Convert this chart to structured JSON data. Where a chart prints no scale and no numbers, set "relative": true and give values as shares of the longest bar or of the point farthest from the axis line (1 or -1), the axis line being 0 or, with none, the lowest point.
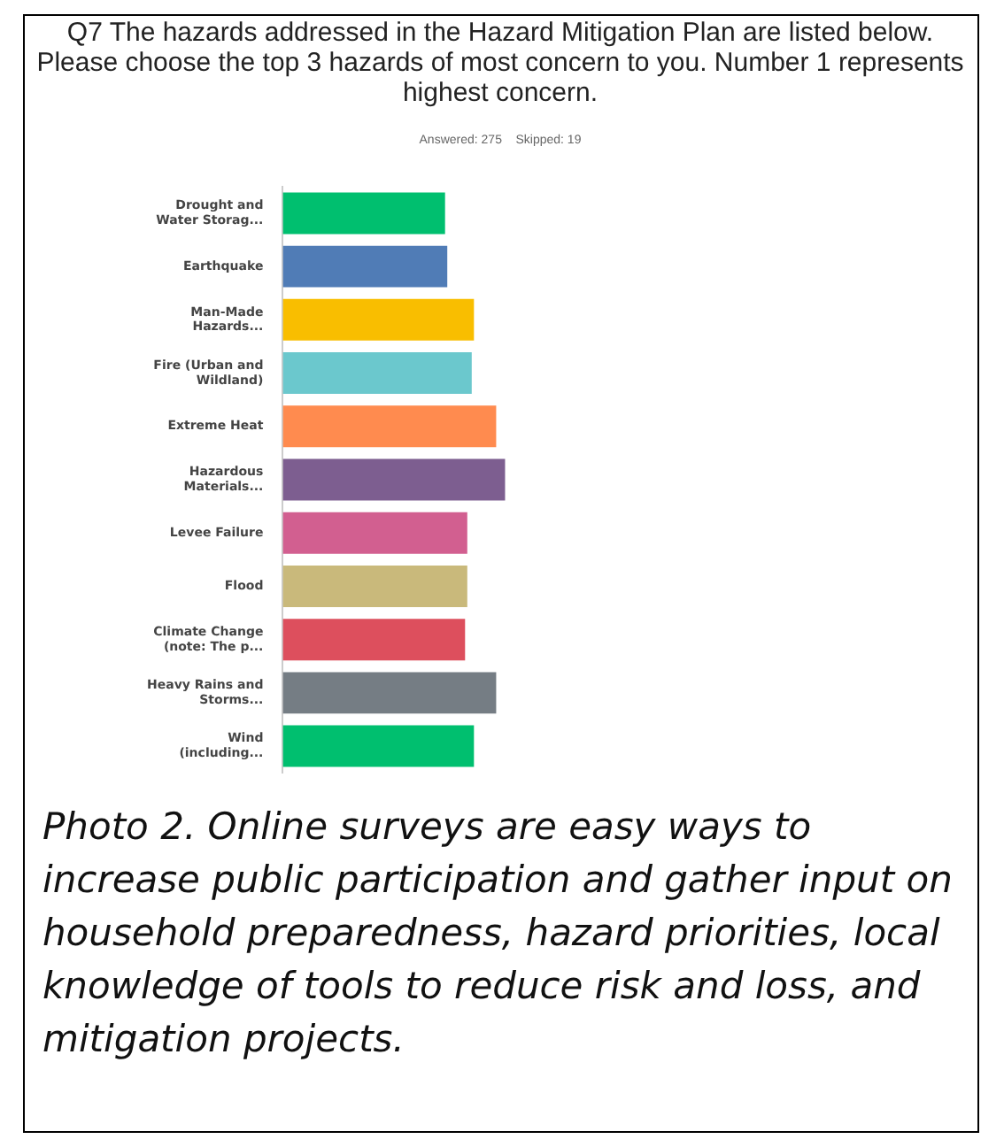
{
  "chart_data": {
    "type": "bar",
    "orientation": "horizontal",
    "relative": true,
    "title": "Q7 The hazards addressed in the Hazard Mitigation Plan are listed below. Please choose the top 3 hazards of most concern to you. Number 1 represents highest concern.",
    "subtitle": "Answered: 275    Skipped: 19",
    "categories": [
      "Drought and Water Storag...",
      "Earthquake",
      "Man-Made Hazards...",
      "Fire (Urban and Wildland)",
      "Extreme Heat",
      "Hazardous Materials...",
      "Levee Failure",
      "Flood",
      "Climate Change (note: The p...",
      "Heavy Rains and Storms...",
      "Wind (including..."
    ],
    "values": [
      0.73,
      0.74,
      0.86,
      0.85,
      0.96,
      1,
      0.83,
      0.83,
      0.82,
      0.96,
      0.86
    ],
    "colors": [
      "#00bf6f",
      "#507cb6",
      "#f9be00",
      "#6bc8cd",
      "#ff8b4f",
      "#7d5e90",
      "#d25f90",
      "#c9b97b",
      "#dd4f5d",
      "#757d84",
      "#00bf6f"
    ],
    "legend": false,
    "annotations": [
      "Photo 2. Online surveys are easy ways to increase public participation and gather input on household preparedness, hazard priorities, local knowledge of tools to reduce risk and loss, and mitigation projects."
    ]
  }
}
